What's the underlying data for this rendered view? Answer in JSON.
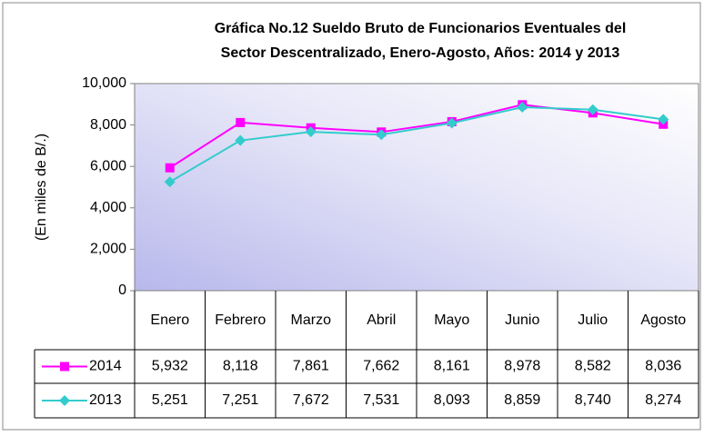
{
  "chart_data": {
    "type": "line",
    "title": [
      "Gráfica No.12 Sueldo Bruto de Funcionarios Eventuales del",
      "Sector Descentralizado, Enero-Agosto, Años: 2014 y 2013"
    ],
    "y_label": "(En miles de B/.)",
    "categories": [
      "Enero",
      "Febrero",
      "Marzo",
      "Abril",
      "Mayo",
      "Junio",
      "Julio",
      "Agosto"
    ],
    "series": [
      {
        "name": "2014",
        "color": "#ff00ff",
        "marker": "square",
        "values": [
          5932,
          8118,
          7861,
          7662,
          8161,
          8978,
          8582,
          8036
        ],
        "value_labels": [
          "5,932",
          "8,118",
          "7,861",
          "7,662",
          "8,161",
          "8,978",
          "8,582",
          "8,036"
        ]
      },
      {
        "name": "2013",
        "color": "#33cccc",
        "marker": "diamond",
        "values": [
          5251,
          7251,
          7672,
          7531,
          8093,
          8859,
          8740,
          8274
        ],
        "value_labels": [
          "5,251",
          "7,251",
          "7,672",
          "7,531",
          "8,093",
          "8,859",
          "8,740",
          "8,274"
        ]
      }
    ],
    "ylim": [
      0,
      10000
    ],
    "yticks": [
      0,
      {
        "value": 2000,
        "label": "2,000"
      },
      {
        "value": 4000,
        "label": "4,000"
      },
      {
        "value": 6000,
        "label": "6,000"
      },
      {
        "value": 8000,
        "label": "8,000"
      },
      {
        "value": 10000,
        "label": "10,000"
      }
    ],
    "grid": false
  }
}
